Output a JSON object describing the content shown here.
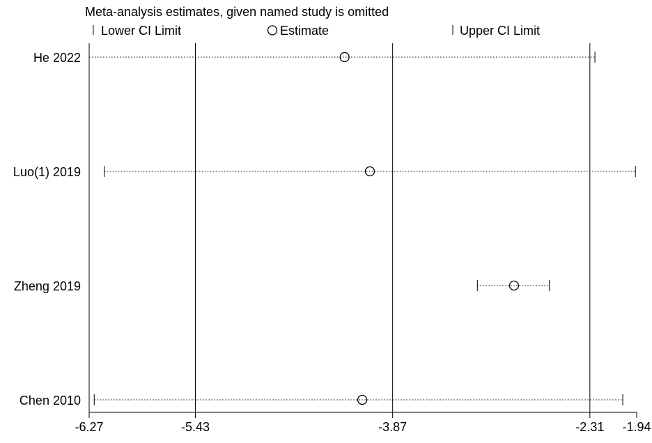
{
  "chart_data": {
    "type": "scatter",
    "subtype": "sensitivity-analysis-forest",
    "title": "Meta-analysis estimates, given named study is omitted",
    "legend": {
      "position": "top",
      "entries": [
        {
          "symbol": "tick",
          "label": "Lower CI Limit"
        },
        {
          "symbol": "circle",
          "label": "Estimate"
        },
        {
          "symbol": "tick",
          "label": "Upper CI Limit"
        }
      ]
    },
    "xlim": [
      -6.27,
      -1.94
    ],
    "x_ticks": [
      -6.27,
      -5.43,
      -3.87,
      -2.31,
      -1.94
    ],
    "x_tick_labels": [
      "-6.27",
      "-5.43",
      "-3.87",
      "-2.31",
      "-1.94"
    ],
    "reference_lines": [
      -6.27,
      -5.43,
      -3.87,
      -2.31
    ],
    "studies": [
      {
        "label": "He 2022",
        "lower": -6.27,
        "estimate": -4.25,
        "upper": -2.27
      },
      {
        "label": "Luo(1) 2019",
        "lower": -6.15,
        "estimate": -4.05,
        "upper": -1.95
      },
      {
        "label": "Zheng 2019",
        "lower": -3.2,
        "estimate": -2.91,
        "upper": -2.63
      },
      {
        "label": "Chen 2010",
        "lower": -6.23,
        "estimate": -4.11,
        "upper": -2.05
      }
    ]
  }
}
